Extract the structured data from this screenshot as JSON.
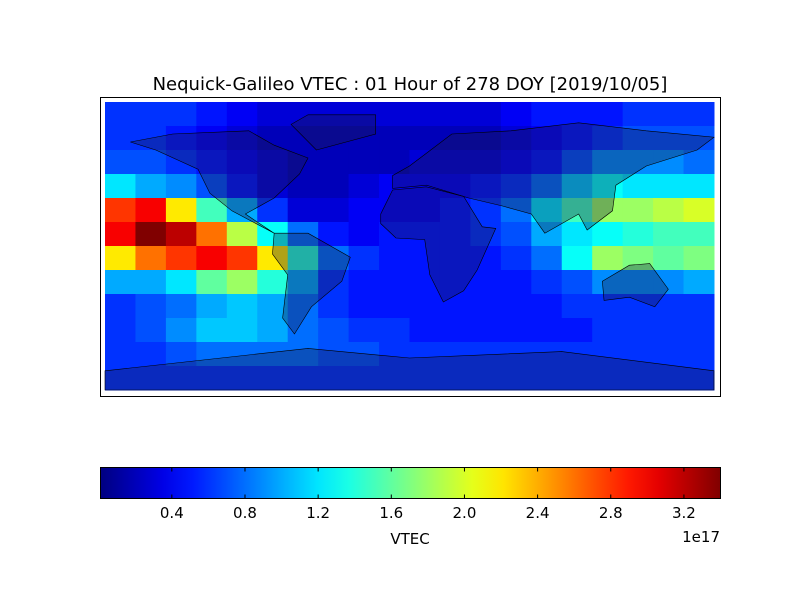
{
  "chart_data": {
    "type": "heatmap",
    "title": "Nequick-Galileo VTEC : 01 Hour of 278 DOY [2019/10/05]",
    "colormap": "jet",
    "values": [
      [
        0.6,
        0.6,
        0.6,
        0.5,
        0.4,
        0.3,
        0.3,
        0.3,
        0.3,
        0.3,
        0.3,
        0.3,
        0.3,
        0.4,
        0.5,
        0.5,
        0.5,
        0.6,
        0.6,
        0.6
      ],
      [
        0.6,
        0.6,
        0.5,
        0.4,
        0.3,
        0.2,
        0.2,
        0.2,
        0.2,
        0.2,
        0.2,
        0.2,
        0.2,
        0.3,
        0.4,
        0.5,
        0.6,
        0.7,
        0.7,
        0.7
      ],
      [
        0.7,
        0.7,
        0.6,
        0.5,
        0.4,
        0.3,
        0.2,
        0.2,
        0.2,
        0.2,
        0.3,
        0.3,
        0.3,
        0.4,
        0.5,
        0.7,
        0.9,
        0.9,
        0.9,
        0.8
      ],
      [
        1.2,
        1.0,
        0.9,
        0.7,
        0.5,
        0.3,
        0.2,
        0.2,
        0.3,
        0.4,
        0.4,
        0.4,
        0.5,
        0.6,
        0.8,
        1.1,
        1.3,
        1.2,
        1.2,
        1.2
      ],
      [
        2.8,
        3.0,
        2.2,
        1.5,
        1.0,
        0.6,
        0.3,
        0.3,
        0.4,
        0.4,
        0.4,
        0.5,
        0.6,
        0.8,
        1.2,
        1.5,
        1.8,
        1.8,
        1.9,
        2.0
      ],
      [
        3.0,
        3.4,
        3.2,
        2.6,
        1.9,
        1.3,
        0.8,
        0.5,
        0.4,
        0.5,
        0.5,
        0.5,
        0.6,
        0.7,
        1.0,
        1.2,
        1.3,
        1.4,
        1.5,
        1.5
      ],
      [
        2.2,
        2.6,
        2.8,
        3.0,
        2.8,
        2.2,
        1.4,
        0.8,
        0.6,
        0.5,
        0.5,
        0.5,
        0.5,
        0.6,
        0.8,
        1.3,
        1.8,
        1.7,
        1.6,
        1.7
      ],
      [
        1.0,
        1.0,
        1.2,
        1.6,
        1.8,
        1.4,
        1.0,
        0.6,
        0.5,
        0.5,
        0.5,
        0.5,
        0.5,
        0.5,
        0.6,
        0.7,
        0.9,
        0.9,
        0.9,
        1.0
      ],
      [
        0.6,
        0.7,
        0.8,
        1.0,
        1.1,
        1.0,
        0.8,
        0.6,
        0.5,
        0.5,
        0.5,
        0.5,
        0.5,
        0.5,
        0.5,
        0.6,
        0.6,
        0.6,
        0.6,
        0.6
      ],
      [
        0.6,
        0.7,
        0.9,
        1.1,
        1.1,
        1.0,
        0.8,
        0.7,
        0.6,
        0.6,
        0.5,
        0.5,
        0.5,
        0.5,
        0.5,
        0.5,
        0.6,
        0.6,
        0.6,
        0.6
      ],
      [
        0.6,
        0.6,
        0.7,
        0.8,
        0.8,
        0.8,
        0.8,
        0.7,
        0.7,
        0.6,
        0.6,
        0.6,
        0.6,
        0.6,
        0.6,
        0.6,
        0.6,
        0.6,
        0.6,
        0.6
      ],
      [
        0.6,
        0.6,
        0.6,
        0.6,
        0.6,
        0.6,
        0.6,
        0.6,
        0.6,
        0.6,
        0.6,
        0.6,
        0.6,
        0.6,
        0.6,
        0.6,
        0.6,
        0.6,
        0.6,
        0.6
      ]
    ],
    "colorbar": {
      "label": "VTEC",
      "offset_label": "1e17",
      "lim": [
        0.01,
        3.4
      ],
      "ticks": [
        0.4,
        0.8,
        1.2,
        1.6,
        {
          "value": 2,
          "label": "2.0"
        },
        2.4,
        2.8,
        3.2
      ]
    }
  }
}
